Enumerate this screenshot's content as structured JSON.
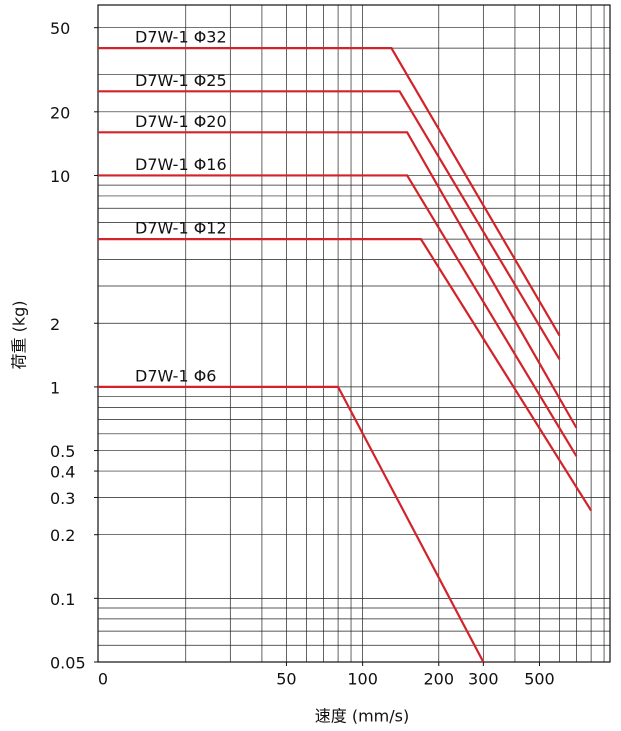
{
  "chart_data": {
    "type": "line",
    "xlabel": "速度 (mm/s)",
    "ylabel": "荷重 (kg)",
    "x_origin_label": "0",
    "log_x": true,
    "log_y": true,
    "grid": true,
    "xlim": [
      9,
      950
    ],
    "ylim": [
      0.05,
      64
    ],
    "xticks": [
      50,
      100,
      200,
      300,
      500
    ],
    "yticks": [
      0.05,
      0.1,
      0.2,
      0.3,
      0.4,
      0.5,
      1,
      2,
      10,
      20,
      50
    ],
    "xgrid": [
      20,
      30,
      40,
      50,
      60,
      70,
      80,
      90,
      100,
      200,
      300,
      400,
      500,
      600,
      700,
      800,
      900
    ],
    "ygrid": [
      0.06,
      0.07,
      0.08,
      0.09,
      0.1,
      0.2,
      0.3,
      0.4,
      0.5,
      0.6,
      0.7,
      0.8,
      0.9,
      1,
      2,
      3,
      4,
      5,
      6,
      7,
      8,
      9,
      10,
      20,
      30,
      40,
      50
    ],
    "series": [
      {
        "name": "D7W-1 Φ32",
        "color": "#d2232a",
        "x": [
          9,
          130,
          600
        ],
        "values": [
          40,
          40,
          1.75
        ]
      },
      {
        "name": "D7W-1 Φ25",
        "color": "#d2232a",
        "x": [
          9,
          140,
          600
        ],
        "values": [
          25,
          25,
          1.35
        ]
      },
      {
        "name": "D7W-1 Φ20",
        "color": "#d2232a",
        "x": [
          9,
          150,
          700
        ],
        "values": [
          16,
          16,
          0.64
        ]
      },
      {
        "name": "D7W-1 Φ16",
        "color": "#d2232a",
        "x": [
          9,
          150,
          700
        ],
        "values": [
          10,
          10,
          0.47
        ]
      },
      {
        "name": "D7W-1 Φ12",
        "color": "#d2232a",
        "x": [
          9,
          170,
          800
        ],
        "values": [
          5,
          5,
          0.26
        ]
      },
      {
        "name": "D7W-1 Φ6",
        "color": "#d2232a",
        "x": [
          9,
          80,
          300
        ],
        "values": [
          1,
          1,
          0.05
        ]
      }
    ]
  }
}
